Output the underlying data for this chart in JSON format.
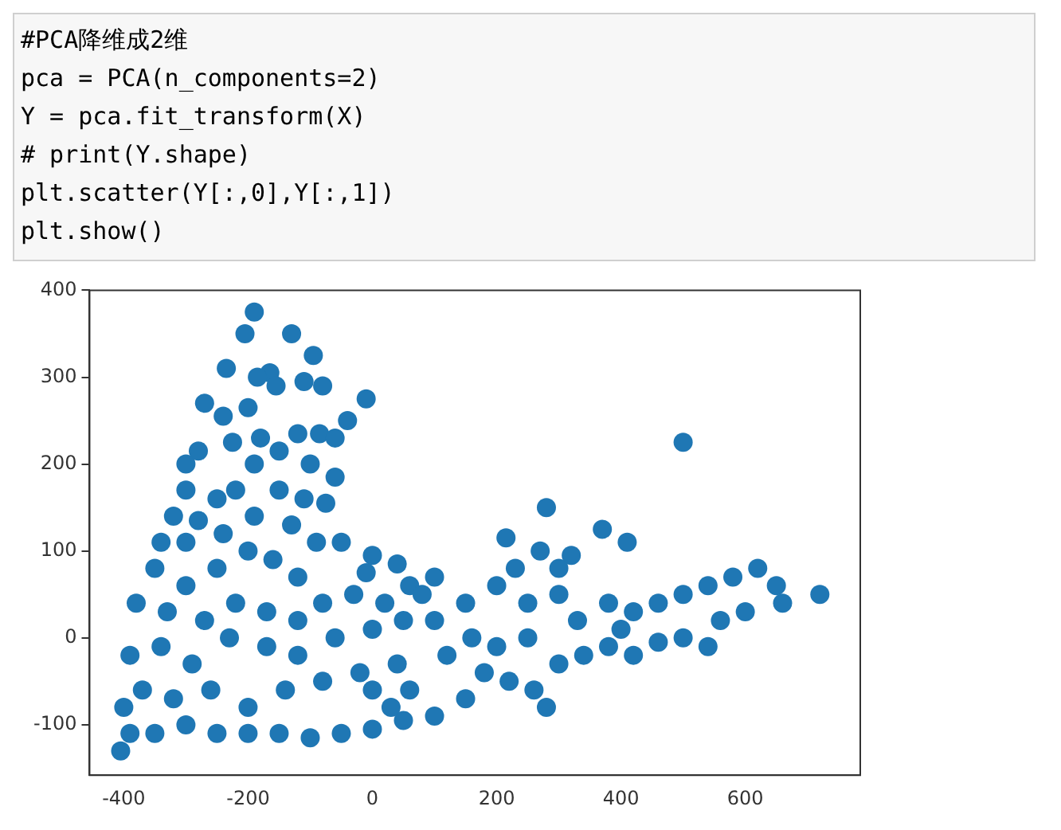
{
  "chart_data": {
    "type": "scatter",
    "annotations": [
      "#PCA降维成2维",
      "pca = PCA(n_components=2)",
      "Y = pca.fit_transform(X)",
      "# print(Y.shape)",
      "plt.scatter(Y[:,0],Y[:,1])",
      "plt.show()"
    ],
    "xlim": [
      -455,
      785
    ],
    "ylim": [
      -158,
      400
    ],
    "xticks": [
      -400,
      -200,
      0,
      200,
      400,
      600
    ],
    "yticks": [
      -100,
      0,
      100,
      200,
      300,
      400
    ],
    "grid": false,
    "marker": "circle",
    "series": [
      {
        "color": "#1f77b4",
        "x": [
          -190,
          -205,
          -130,
          -95,
          -165,
          -235,
          -185,
          -155,
          -110,
          -80,
          -270,
          -240,
          -200,
          -10,
          -40,
          -280,
          -300,
          -225,
          -180,
          -120,
          -85,
          -60,
          -300,
          -250,
          -190,
          -150,
          -100,
          -60,
          -320,
          -280,
          -220,
          -150,
          -110,
          -340,
          -300,
          -240,
          -190,
          -130,
          -75,
          -90,
          -50,
          0,
          40,
          -10,
          60,
          80,
          100,
          -350,
          -300,
          -250,
          -200,
          -160,
          -120,
          -380,
          -330,
          -270,
          -220,
          -170,
          -120,
          -80,
          -30,
          20,
          -390,
          -340,
          -290,
          -230,
          -170,
          -120,
          -60,
          0,
          50,
          -400,
          -370,
          -320,
          -260,
          -200,
          -140,
          -80,
          -20,
          40,
          -405,
          -390,
          -350,
          -300,
          -250,
          -200,
          -150,
          -100,
          -50,
          0,
          50,
          100,
          150,
          120,
          180,
          220,
          260,
          280,
          300,
          340,
          380,
          420,
          460,
          500,
          540,
          100,
          150,
          200,
          250,
          300,
          330,
          380,
          420,
          460,
          500,
          540,
          580,
          620,
          650,
          660,
          720,
          280,
          500,
          215,
          370,
          270,
          320,
          410,
          230,
          300,
          200,
          250,
          400,
          600,
          560,
          0,
          60,
          160,
          30
        ],
        "values": [
          375,
          350,
          350,
          325,
          305,
          310,
          300,
          290,
          295,
          290,
          270,
          255,
          265,
          275,
          250,
          215,
          200,
          225,
          230,
          235,
          235,
          230,
          170,
          160,
          200,
          215,
          200,
          185,
          140,
          135,
          170,
          170,
          160,
          110,
          110,
          120,
          140,
          130,
          155,
          110,
          110,
          95,
          85,
          75,
          60,
          50,
          70,
          80,
          60,
          80,
          100,
          90,
          70,
          40,
          30,
          20,
          40,
          30,
          20,
          40,
          50,
          40,
          -20,
          -10,
          -30,
          0,
          -10,
          -20,
          0,
          10,
          20,
          -80,
          -60,
          -70,
          -60,
          -80,
          -60,
          -50,
          -40,
          -30,
          -130,
          -110,
          -110,
          -100,
          -110,
          -110,
          -110,
          -115,
          -110,
          -105,
          -95,
          -90,
          -70,
          -20,
          -40,
          -50,
          -60,
          -80,
          -30,
          -20,
          -10,
          -20,
          -5,
          0,
          -10,
          20,
          40,
          60,
          40,
          50,
          20,
          40,
          30,
          40,
          50,
          60,
          70,
          80,
          60,
          40,
          50,
          150,
          225,
          115,
          125,
          100,
          95,
          110,
          80,
          80,
          -10,
          0,
          10,
          30,
          20,
          -60,
          -60,
          0,
          -80
        ]
      }
    ]
  }
}
